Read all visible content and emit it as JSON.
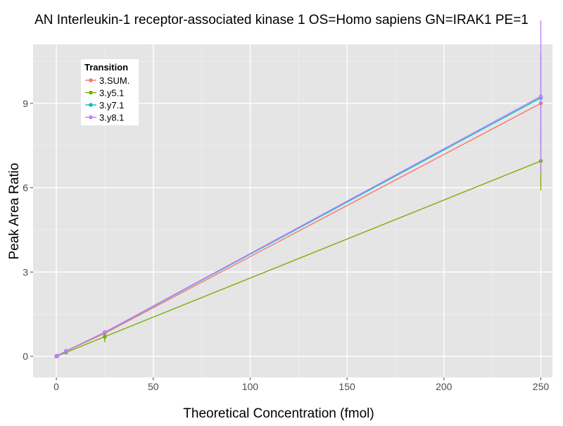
{
  "chart_data": {
    "type": "line",
    "title": "AN Interleukin-1 receptor-associated kinase 1 OS=Homo sapiens GN=IRAK1 PE=1",
    "xlabel": "Theoretical Concentration (fmol)",
    "ylabel": "Peak Area Ratio",
    "xlim": [
      -12,
      256
    ],
    "ylim": [
      -0.75,
      11.1
    ],
    "xticks": [
      0,
      50,
      100,
      150,
      200,
      250
    ],
    "yticks": [
      0,
      3,
      6,
      9
    ],
    "grid": true,
    "legend": {
      "title": "Transition",
      "position": "top-left"
    },
    "series": [
      {
        "name": "3.SUM.",
        "color": "#F8766D",
        "points": [
          {
            "x": 0,
            "y": 0.0,
            "err": 0.02
          },
          {
            "x": 0.5,
            "y": 0.02,
            "err": 0.01
          },
          {
            "x": 5,
            "y": 0.18,
            "err": 0.02
          },
          {
            "x": 25,
            "y": 0.82,
            "err": 0.08
          },
          {
            "x": 250,
            "y": 9.0,
            "err": 0.0
          }
        ]
      },
      {
        "name": "3.y5.1",
        "color": "#7CAE00",
        "points": [
          {
            "x": 0,
            "y": 0.0,
            "err": 0.02
          },
          {
            "x": 0.5,
            "y": 0.01,
            "err": 0.01
          },
          {
            "x": 5,
            "y": 0.14,
            "err": 0.03
          },
          {
            "x": 25,
            "y": 0.7,
            "err": 0.2
          },
          {
            "x": 250,
            "y": 6.95,
            "err": 1.05
          }
        ]
      },
      {
        "name": "3.y7.1",
        "color": "#00BFC4",
        "points": [
          {
            "x": 0,
            "y": 0.0,
            "err": 0.02
          },
          {
            "x": 0.5,
            "y": 0.02,
            "err": 0.01
          },
          {
            "x": 5,
            "y": 0.19,
            "err": 0.02
          },
          {
            "x": 25,
            "y": 0.85,
            "err": 0.05
          },
          {
            "x": 250,
            "y": 9.2,
            "err": 1.6
          }
        ]
      },
      {
        "name": "3.y8.1",
        "color": "#C77CFF",
        "points": [
          {
            "x": 0,
            "y": 0.0,
            "err": 0.02
          },
          {
            "x": 0.5,
            "y": 0.02,
            "err": 0.01
          },
          {
            "x": 5,
            "y": 0.19,
            "err": 0.02
          },
          {
            "x": 25,
            "y": 0.86,
            "err": 0.05
          },
          {
            "x": 250,
            "y": 9.25,
            "err": 2.7
          }
        ]
      }
    ]
  }
}
